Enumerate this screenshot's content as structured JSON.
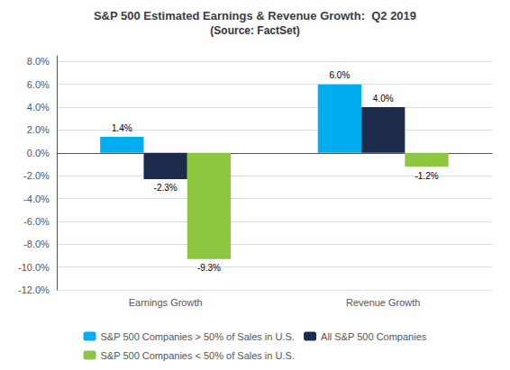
{
  "chart_data": {
    "type": "bar",
    "title": "S&P 500 Estimated Earnings & Revenue Growth:  Q2 2019",
    "subtitle": "(Source: FactSet)",
    "categories": [
      "Earnings Growth",
      "Revenue Growth"
    ],
    "series": [
      {
        "name": "S&P 500 Companies > 50% of Sales in U.S.",
        "color": "#00AEEF",
        "values": [
          1.4,
          6.0
        ],
        "value_labels": [
          "1.4%",
          "6.0%"
        ]
      },
      {
        "name": "All S&P 500 Companies",
        "color": "#1C2B4B",
        "values": [
          -2.3,
          4.0
        ],
        "value_labels": [
          "-2.3%",
          "4.0%"
        ]
      },
      {
        "name": "S&P 500 Companies < 50% of Sales in U.S.",
        "color": "#8DC63F",
        "values": [
          -9.3,
          -1.2
        ],
        "value_labels": [
          "-9.3%",
          "-1.2%"
        ]
      }
    ],
    "ylim": [
      -12,
      8.5
    ],
    "yticks": [
      {
        "value": -12,
        "label": "-12.0%"
      },
      {
        "value": -10,
        "label": "-10.0%"
      },
      {
        "value": -8,
        "label": "-8.0%"
      },
      {
        "value": -6,
        "label": "-6.0%"
      },
      {
        "value": -4,
        "label": "-4.0%"
      },
      {
        "value": -2,
        "label": "-2.0%"
      },
      {
        "value": 0,
        "label": "0.0%"
      },
      {
        "value": 2,
        "label": "2.0%"
      },
      {
        "value": 4,
        "label": "4.0%"
      },
      {
        "value": 6,
        "label": "6.0%"
      },
      {
        "value": 8,
        "label": "8.0%"
      }
    ],
    "grid": true,
    "legend": "bottom",
    "data_labels": true
  }
}
